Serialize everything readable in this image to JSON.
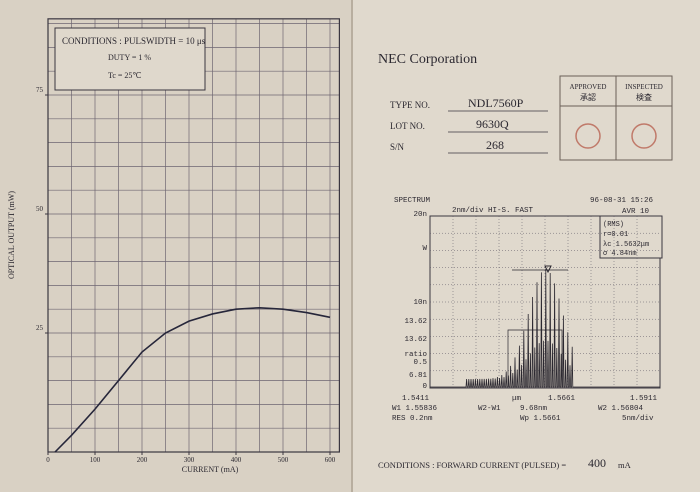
{
  "chart": {
    "type": "line",
    "conditions": [
      "CONDITIONS : PULSWIDTH = 10 μs",
      "DUTY = 1 %",
      "Tc = 25℃"
    ],
    "xlabel": "CURRENT (mA)",
    "ylabel": "OPTICAL OUTPUT (mW)",
    "x": [
      15,
      50,
      100,
      150,
      200,
      250,
      300,
      350,
      400,
      450,
      500,
      550,
      600
    ],
    "values": [
      0,
      3.5,
      9,
      15,
      21,
      25,
      27.5,
      29,
      30,
      30.3,
      30,
      29.3,
      28.3
    ],
    "xlim": [
      0,
      620
    ],
    "ylim": [
      0,
      91
    ],
    "xticks": [
      0,
      100,
      200,
      300,
      400,
      500,
      600
    ],
    "yticks": [
      25,
      50,
      75
    ],
    "color": "#26263a",
    "grid": true
  },
  "report": {
    "company": "NEC Corporation",
    "fields": [
      {
        "label": "TYPE NO.",
        "value": "NDL7560P"
      },
      {
        "label": "LOT NO.",
        "value": "9630Q"
      },
      {
        "label": "S/N",
        "value": "268"
      }
    ],
    "stamps": [
      {
        "label": "APPROVED",
        "sub": "承認"
      },
      {
        "label": "INSPECTED",
        "sub": "検査"
      }
    ],
    "conditions": {
      "text": "CONDITIONS : FORWARD CURRENT (PULSED) =",
      "value": "400",
      "unit": "mA"
    }
  },
  "spectrum": {
    "title": "SPECTRUM",
    "settings": "2nm/div  HI-S.  FAST",
    "timestamp": "96-08-31 15:26",
    "averaging": "AVR  10",
    "left_labels": [
      "20n",
      "W",
      "10n",
      "13.62",
      "13.62",
      "ratio",
      "0.5",
      "6.81",
      "0"
    ],
    "stats": [
      "(RMS)",
      "r=0.01",
      "λc 1.5632μm",
      "σ   4.84nm"
    ],
    "bottom_labels": [
      "1.5411",
      "μm",
      "1.5661",
      "1.5911",
      "W1 1.55836",
      "W2-W1",
      "9.68nm",
      "W2 1.56804",
      "RES 0.2nm",
      "Wp 1.5661",
      "5nm/div"
    ]
  }
}
